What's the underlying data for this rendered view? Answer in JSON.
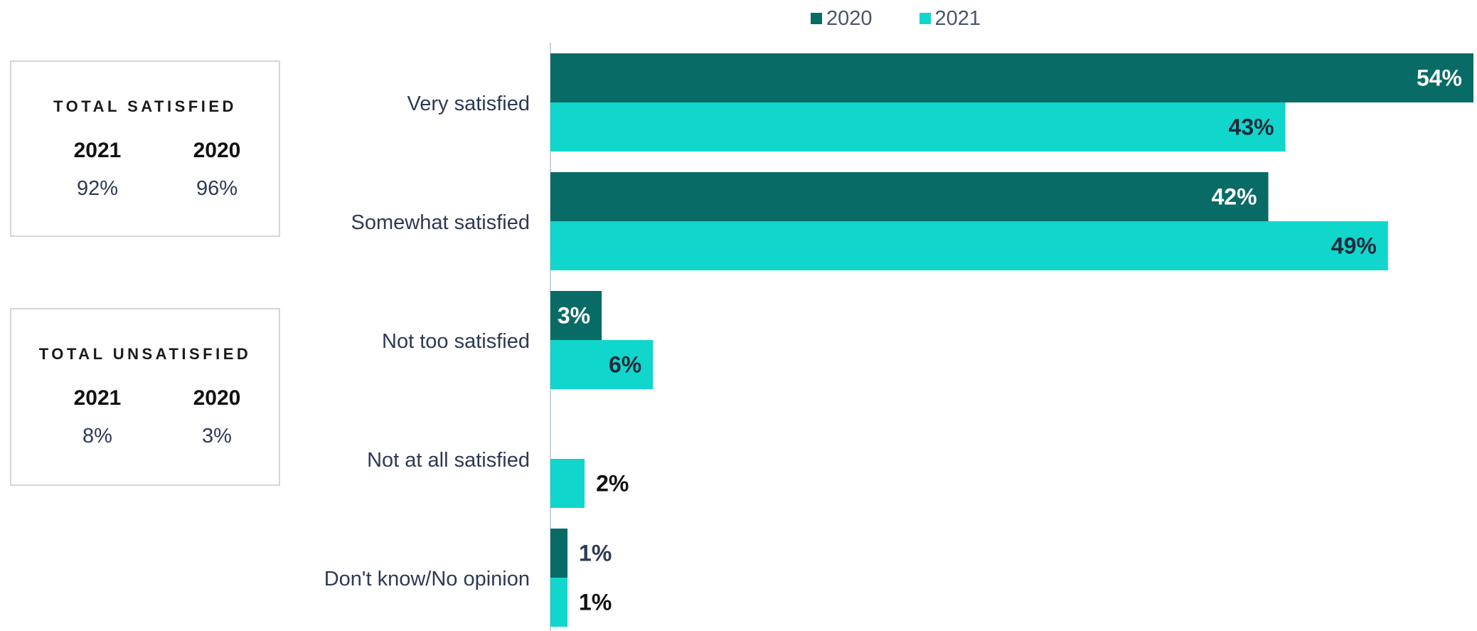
{
  "colors": {
    "y2020": "#086b66",
    "y2021": "#11d6cc",
    "axis": "#c8d3dd"
  },
  "legend": [
    {
      "label": "2020",
      "color": "#086b66"
    },
    {
      "label": "2021",
      "color": "#11d6cc"
    }
  ],
  "summary": {
    "satisfied": {
      "title": "TOTAL SATISFIED",
      "col1_year": "2021",
      "col1_value": "92%",
      "col2_year": "2020",
      "col2_value": "96%"
    },
    "unsatisfied": {
      "title": "TOTAL UNSATISFIED",
      "col1_year": "2021",
      "col1_value": "8%",
      "col2_year": "2020",
      "col2_value": "3%"
    }
  },
  "chart_data": {
    "type": "bar",
    "orientation": "horizontal",
    "title": "",
    "xlabel": "",
    "ylabel": "",
    "xlim": [
      0,
      54
    ],
    "grid": false,
    "legend_position": "top",
    "categories": [
      "Very satisfied",
      "Somewhat satisfied",
      "Not too satisfied",
      "Not at all satisfied",
      "Don't know/No opinion"
    ],
    "series": [
      {
        "name": "2020",
        "values": [
          54,
          42,
          3,
          0,
          1
        ],
        "labels": [
          "54%",
          "42%",
          "3%",
          "",
          "1%"
        ]
      },
      {
        "name": "2021",
        "values": [
          43,
          49,
          6,
          2,
          1
        ],
        "labels": [
          "43%",
          "49%",
          "6%",
          "2%",
          "1%"
        ]
      }
    ]
  }
}
